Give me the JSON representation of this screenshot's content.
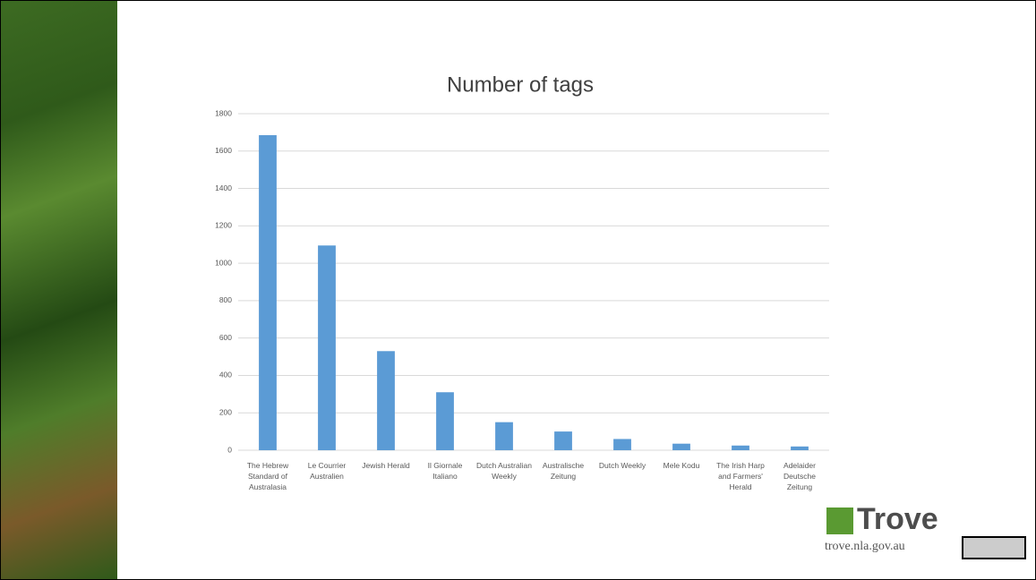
{
  "chart_data": {
    "type": "bar",
    "title": "Number of tags",
    "categories": [
      "The Hebrew Standard of Australasia",
      "Le Courrier Australien",
      "Jewish Herald",
      "Il Giornale Italiano",
      "Dutch Australian Weekly",
      "Australische Zeitung",
      "Dutch Weekly",
      "Mele Kodu",
      "The Irish Harp and Farmers' Herald",
      "Adelaider Deutsche Zeitung"
    ],
    "values": [
      1685,
      1095,
      530,
      310,
      150,
      100,
      60,
      35,
      25,
      20
    ],
    "color": "#5b9bd5",
    "ylim": [
      0,
      1800
    ],
    "yticks": [
      0,
      200,
      400,
      600,
      800,
      1000,
      1200,
      1400,
      1600,
      1800
    ],
    "grid": true
  },
  "branding": {
    "name": "Trove",
    "url": "trove.nla.gov.au"
  }
}
